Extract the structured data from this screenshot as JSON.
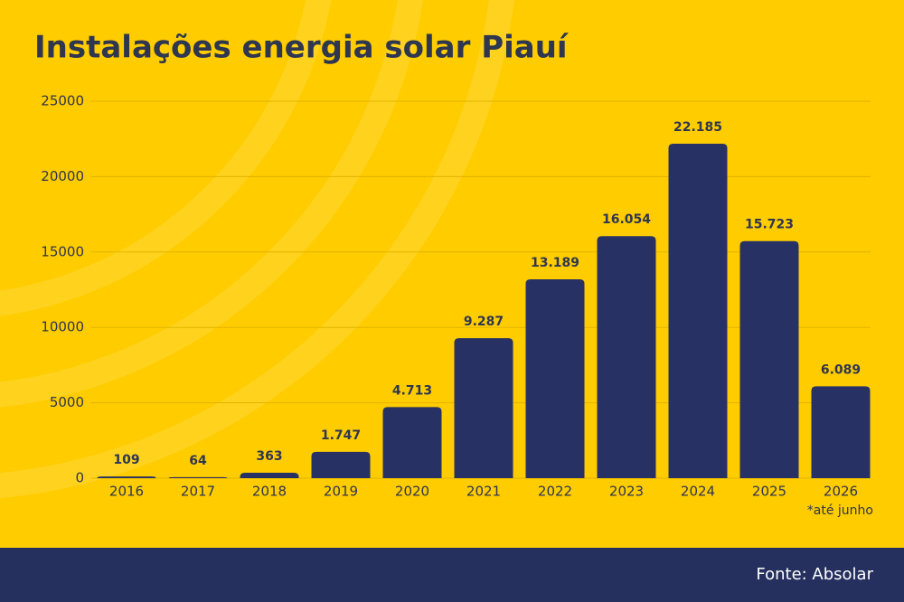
{
  "chart_data": {
    "type": "bar",
    "title": "Instalações energia solar Piauí",
    "categories": [
      "2016",
      "2017",
      "2018",
      "2019",
      "2020",
      "2021",
      "2022",
      "2023",
      "2024",
      "2025",
      "2026"
    ],
    "values": [
      109,
      64,
      363,
      1747,
      4713,
      9287,
      13189,
      16054,
      22185,
      15723,
      6089
    ],
    "value_labels": [
      "109",
      "64",
      "363",
      "1.747",
      "4.713",
      "9.287",
      "13.189",
      "16.054",
      "22.185",
      "15.723",
      "6.089"
    ],
    "color": "#283164",
    "ylim": [
      0,
      25000
    ],
    "yticks": [
      0,
      5000,
      10000,
      15000,
      20000,
      25000
    ],
    "grid": true,
    "annotation": "*até junho",
    "source": "Fonte: Absolar"
  }
}
